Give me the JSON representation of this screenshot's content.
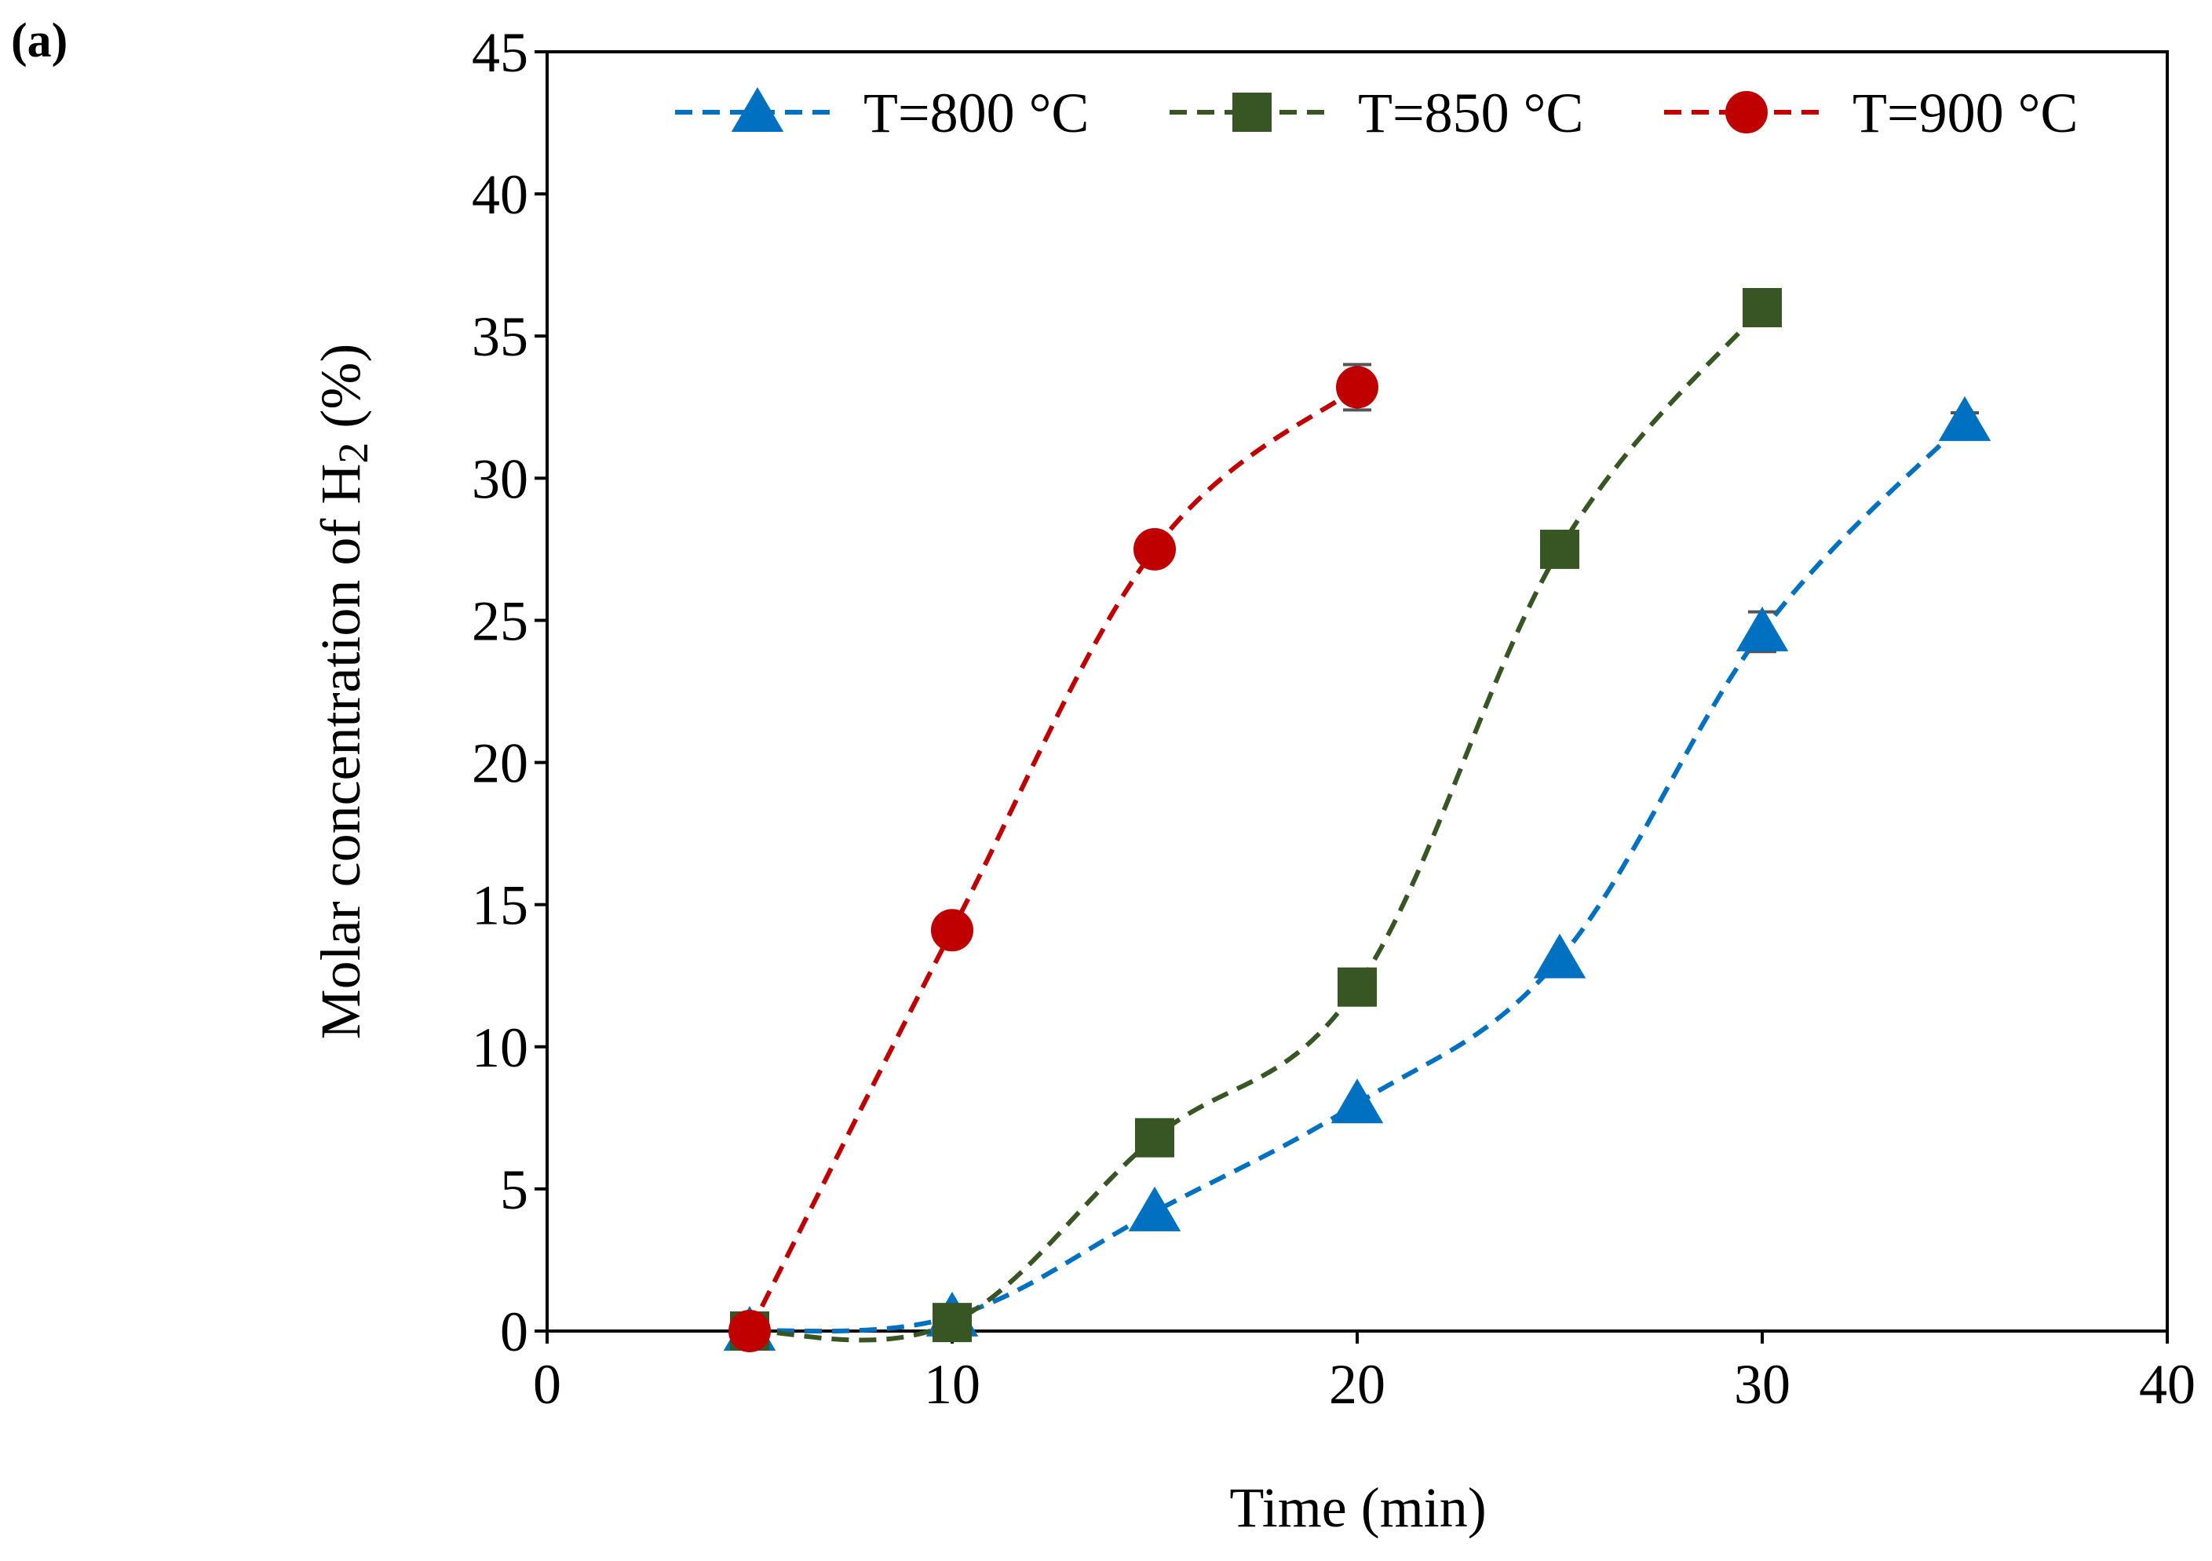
{
  "panel_label": "(a)",
  "chart_data": {
    "type": "line",
    "title": "",
    "xlabel": "Time (min)",
    "ylabel": "Molar concentration of H",
    "ylabel_subscript": "2",
    "ylabel_suffix": " (%)",
    "xlim": [
      0,
      40
    ],
    "ylim": [
      0,
      45
    ],
    "xticks": [
      0,
      10,
      20,
      30,
      40
    ],
    "yticks": [
      0,
      5,
      10,
      15,
      20,
      25,
      30,
      35,
      40,
      45
    ],
    "legend_position": "top",
    "grid": false,
    "series": [
      {
        "name": "T=800 °C",
        "marker": "triangle",
        "color": "#0070C0",
        "x": [
          5,
          10,
          15,
          20,
          25,
          30,
          35
        ],
        "values": [
          0,
          0.5,
          4.2,
          8.0,
          13.1,
          24.6,
          32.0
        ],
        "errors": [
          0,
          0,
          0,
          0,
          0,
          0.7,
          0.3
        ]
      },
      {
        "name": "T=850 °C",
        "marker": "square",
        "color": "#375623",
        "x": [
          5,
          10,
          15,
          20,
          25,
          30
        ],
        "values": [
          0,
          0.3,
          6.8,
          12.1,
          27.5,
          36.0
        ],
        "errors": [
          0,
          0,
          0,
          0,
          0,
          0
        ]
      },
      {
        "name": "T=900 °C",
        "marker": "circle",
        "color": "#C00000",
        "x": [
          5,
          10,
          15,
          20
        ],
        "values": [
          0,
          14.1,
          27.5,
          33.2
        ],
        "errors": [
          0,
          0,
          0,
          0.8
        ]
      }
    ]
  }
}
